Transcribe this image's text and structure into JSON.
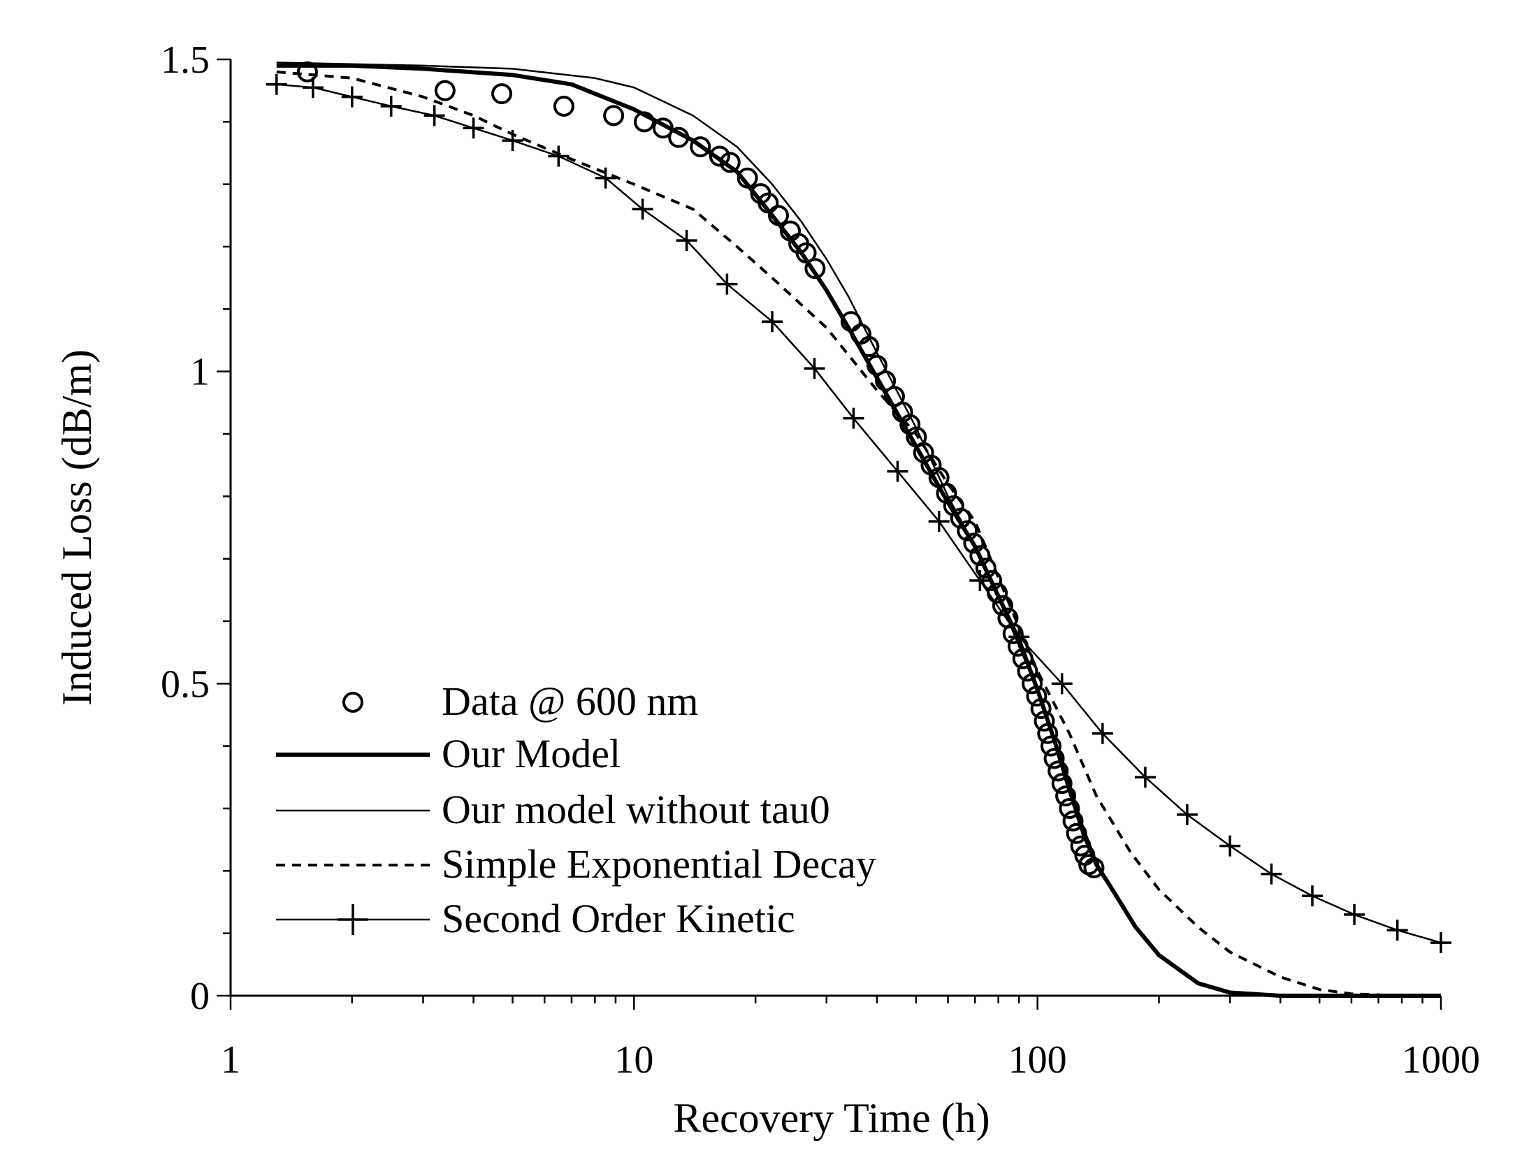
{
  "chart_data": {
    "type": "line",
    "title": "",
    "xlabel": "Recovery Time (h)",
    "ylabel": "Induced Loss (dB/m)",
    "xscale": "log",
    "xlim": [
      1,
      1000
    ],
    "ylim": [
      0,
      1.5
    ],
    "xticks": [
      {
        "value": 1,
        "label": "1"
      },
      {
        "value": 10,
        "label": "10"
      },
      {
        "value": 100,
        "label": "100"
      },
      {
        "value": 1000,
        "label": "1000"
      }
    ],
    "yticks": [
      {
        "value": 0,
        "label": "0"
      },
      {
        "value": 0.5,
        "label": "0.5"
      },
      {
        "value": 1,
        "label": "1"
      },
      {
        "value": 1.5,
        "label": "1.5"
      }
    ],
    "grid": false,
    "legend_position": "bottom-left",
    "series": [
      {
        "name": "Data @ 600 nm",
        "style": "markers-circle",
        "points": [
          [
            1.55,
            1.48
          ],
          [
            3.4,
            1.45
          ],
          [
            4.7,
            1.445
          ],
          [
            6.7,
            1.425
          ],
          [
            8.9,
            1.41
          ],
          [
            10.6,
            1.4
          ],
          [
            11.8,
            1.39
          ],
          [
            12.9,
            1.375
          ],
          [
            14.6,
            1.36
          ],
          [
            16.3,
            1.345
          ],
          [
            17.3,
            1.335
          ],
          [
            19.1,
            1.31
          ],
          [
            20.6,
            1.285
          ],
          [
            21.5,
            1.27
          ],
          [
            22.8,
            1.25
          ],
          [
            24.4,
            1.225
          ],
          [
            25.6,
            1.205
          ],
          [
            26.7,
            1.19
          ],
          [
            28.1,
            1.165
          ],
          [
            34.5,
            1.08
          ],
          [
            36.5,
            1.06
          ],
          [
            38.2,
            1.04
          ],
          [
            40,
            1.01
          ],
          [
            42,
            0.985
          ],
          [
            44.2,
            0.96
          ],
          [
            46.3,
            0.935
          ],
          [
            48.3,
            0.915
          ],
          [
            50.1,
            0.895
          ],
          [
            52.2,
            0.87
          ],
          [
            54.5,
            0.85
          ],
          [
            57,
            0.83
          ],
          [
            59.5,
            0.805
          ],
          [
            62,
            0.785
          ],
          [
            64.5,
            0.765
          ],
          [
            67,
            0.745
          ],
          [
            69.5,
            0.725
          ],
          [
            72,
            0.705
          ],
          [
            74.5,
            0.685
          ],
          [
            77,
            0.665
          ],
          [
            79.5,
            0.645
          ],
          [
            82,
            0.625
          ],
          [
            84.5,
            0.605
          ],
          [
            87,
            0.58
          ],
          [
            89.5,
            0.56
          ],
          [
            92,
            0.54
          ],
          [
            94.5,
            0.52
          ],
          [
            97,
            0.5
          ],
          [
            99.5,
            0.48
          ],
          [
            102,
            0.46
          ],
          [
            104,
            0.44
          ],
          [
            106,
            0.42
          ],
          [
            108,
            0.4
          ],
          [
            110,
            0.38
          ],
          [
            112.5,
            0.36
          ],
          [
            115,
            0.34
          ],
          [
            117.5,
            0.32
          ],
          [
            120,
            0.3
          ],
          [
            122.5,
            0.28
          ],
          [
            125,
            0.26
          ],
          [
            128,
            0.24
          ],
          [
            131,
            0.225
          ],
          [
            134,
            0.21
          ],
          [
            138,
            0.205
          ]
        ]
      },
      {
        "name": "Our Model",
        "style": "solid-thick",
        "points": [
          [
            1.3,
            1.49
          ],
          [
            2,
            1.49
          ],
          [
            3,
            1.485
          ],
          [
            5,
            1.475
          ],
          [
            7,
            1.46
          ],
          [
            10,
            1.42
          ],
          [
            14,
            1.37
          ],
          [
            18,
            1.32
          ],
          [
            22,
            1.25
          ],
          [
            26,
            1.19
          ],
          [
            30,
            1.13
          ],
          [
            34,
            1.07
          ],
          [
            40,
            0.99
          ],
          [
            50,
            0.88
          ],
          [
            60,
            0.79
          ],
          [
            70,
            0.72
          ],
          [
            80,
            0.64
          ],
          [
            90,
            0.57
          ],
          [
            100,
            0.49
          ],
          [
            110,
            0.41
          ],
          [
            120,
            0.33
          ],
          [
            130,
            0.26
          ],
          [
            140,
            0.21
          ],
          [
            150,
            0.18
          ],
          [
            175,
            0.11
          ],
          [
            200,
            0.065
          ],
          [
            250,
            0.02
          ],
          [
            300,
            0.005
          ],
          [
            400,
            0.0
          ],
          [
            600,
            0.0
          ],
          [
            1000,
            0.0
          ]
        ]
      },
      {
        "name": "Our model without tau0",
        "style": "solid-thin",
        "points": [
          [
            1.3,
            1.495
          ],
          [
            3,
            1.49
          ],
          [
            5,
            1.485
          ],
          [
            8,
            1.47
          ],
          [
            10,
            1.455
          ],
          [
            14,
            1.41
          ],
          [
            18,
            1.36
          ],
          [
            22,
            1.3
          ],
          [
            26,
            1.24
          ],
          [
            30,
            1.18
          ],
          [
            34,
            1.12
          ],
          [
            40,
            1.03
          ],
          [
            50,
            0.91
          ],
          [
            60,
            0.8
          ],
          [
            70,
            0.72
          ],
          [
            80,
            0.64
          ],
          [
            90,
            0.56
          ],
          [
            100,
            0.49
          ],
          [
            110,
            0.41
          ],
          [
            120,
            0.34
          ],
          [
            130,
            0.27
          ],
          [
            140,
            0.215
          ]
        ]
      },
      {
        "name": "Simple Exponential Decay",
        "style": "dashed",
        "points": [
          [
            1.3,
            1.48
          ],
          [
            2,
            1.47
          ],
          [
            3,
            1.44
          ],
          [
            4,
            1.41
          ],
          [
            5,
            1.38
          ],
          [
            7,
            1.34
          ],
          [
            10,
            1.3
          ],
          [
            14,
            1.26
          ],
          [
            18,
            1.2
          ],
          [
            22,
            1.15
          ],
          [
            30,
            1.07
          ],
          [
            40,
            0.97
          ],
          [
            50,
            0.9
          ],
          [
            60,
            0.82
          ],
          [
            70,
            0.76
          ],
          [
            80,
            0.67
          ],
          [
            90,
            0.59
          ],
          [
            100,
            0.52
          ],
          [
            120,
            0.42
          ],
          [
            140,
            0.32
          ],
          [
            170,
            0.23
          ],
          [
            200,
            0.17
          ],
          [
            250,
            0.11
          ],
          [
            300,
            0.07
          ],
          [
            400,
            0.03
          ],
          [
            500,
            0.01
          ],
          [
            600,
            0.003
          ],
          [
            800,
            0.0
          ],
          [
            1000,
            0.0
          ]
        ]
      },
      {
        "name": "Second Order Kinetic",
        "style": "solid-plus",
        "points": [
          [
            1.3,
            1.46
          ],
          [
            1.6,
            1.455
          ],
          [
            2,
            1.44
          ],
          [
            2.5,
            1.425
          ],
          [
            3.2,
            1.41
          ],
          [
            4,
            1.39
          ],
          [
            5,
            1.37
          ],
          [
            6.5,
            1.345
          ],
          [
            8.5,
            1.31
          ],
          [
            10.5,
            1.26
          ],
          [
            13.5,
            1.21
          ],
          [
            17,
            1.14
          ],
          [
            22,
            1.08
          ],
          [
            28,
            1.005
          ],
          [
            35,
            0.925
          ],
          [
            45,
            0.84
          ],
          [
            57,
            0.76
          ],
          [
            72,
            0.665
          ],
          [
            90,
            0.575
          ],
          [
            115,
            0.5
          ],
          [
            145,
            0.42
          ],
          [
            185,
            0.35
          ],
          [
            235,
            0.29
          ],
          [
            300,
            0.24
          ],
          [
            380,
            0.195
          ],
          [
            480,
            0.16
          ],
          [
            610,
            0.13
          ],
          [
            780,
            0.105
          ],
          [
            1000,
            0.085
          ]
        ]
      }
    ]
  }
}
